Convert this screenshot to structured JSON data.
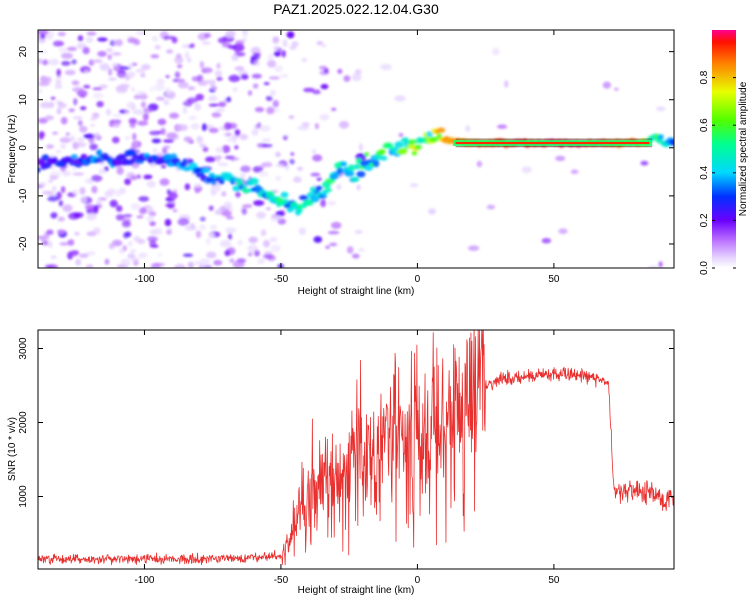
{
  "chart_data": [
    {
      "type": "heatmap",
      "title": "PAZ1.2025.022.12.04.G30",
      "xlabel": "Height of straight line (km)",
      "ylabel": "Frequency (Hz)",
      "xlim": [
        -139,
        94
      ],
      "ylim": [
        -25,
        24.5
      ],
      "xticks": [
        -100,
        -50,
        0,
        50
      ],
      "yticks": [
        -20,
        -10,
        0,
        10,
        20
      ],
      "colorbar": {
        "label": "Normalized spectral amplitude",
        "range": [
          0,
          1
        ],
        "ticks": [
          0.0,
          0.2,
          0.4,
          0.6,
          0.8
        ],
        "tick_labels": [
          "0.0",
          "0.2",
          "0.4",
          "0.6",
          "0.8"
        ]
      },
      "ridge": {
        "x": [
          -139,
          -120,
          -100,
          -90,
          -80,
          -70,
          -60,
          -55,
          -50,
          -45,
          -40,
          -35,
          -30,
          -25,
          -20,
          -15,
          -10,
          -5,
          0,
          5,
          10,
          20,
          30,
          40,
          50,
          60,
          70,
          80,
          86,
          90,
          94
        ],
        "y": [
          -3,
          -2.5,
          -2.2,
          -3,
          -5,
          -6.5,
          -8.5,
          -10,
          -11,
          -11.8,
          -12,
          -9,
          -6,
          -5,
          -4,
          -2.5,
          -0.5,
          0,
          0.5,
          2,
          1.5,
          1,
          1,
          1,
          1,
          1,
          1,
          1,
          1.5,
          1.5,
          0.5
        ],
        "peak_amplitude": [
          0.3,
          0.35,
          0.35,
          0.35,
          0.4,
          0.45,
          0.5,
          0.45,
          0.55,
          0.5,
          0.45,
          0.55,
          0.5,
          0.55,
          0.55,
          0.55,
          0.6,
          0.65,
          0.7,
          0.65,
          0.85,
          0.9,
          0.95,
          1,
          1,
          1,
          0.95,
          0.9,
          0.6,
          0.55,
          0.45
        ]
      }
    },
    {
      "type": "line",
      "xlabel": "Height of straight line (km)",
      "ylabel": "SNR (10 * v/v)",
      "xlim": [
        -139,
        94
      ],
      "ylim": [
        20,
        3250
      ],
      "xticks": [
        -100,
        -50,
        0,
        50
      ],
      "yticks": [
        1000,
        2000,
        3000
      ],
      "color": "#e8302f",
      "envelope": {
        "x": [
          -139,
          -120,
          -100,
          -80,
          -60,
          -50,
          -47,
          -45,
          -42,
          -40,
          -38,
          -35,
          -30,
          -25,
          -20,
          -15,
          -12,
          -10,
          -5,
          0,
          5,
          10,
          15,
          20,
          25,
          30,
          40,
          50,
          60,
          70,
          71,
          72,
          75,
          80,
          85,
          88,
          90,
          94
        ],
        "y": [
          150,
          150,
          160,
          160,
          170,
          200,
          400,
          700,
          900,
          1000,
          1100,
          1200,
          1300,
          1400,
          1500,
          1600,
          1700,
          1750,
          1800,
          1900,
          1950,
          2000,
          2200,
          2400,
          2500,
          2560,
          2620,
          2650,
          2640,
          2560,
          1800,
          1100,
          1080,
          1060,
          1050,
          1000,
          950,
          1050
        ]
      }
    }
  ]
}
